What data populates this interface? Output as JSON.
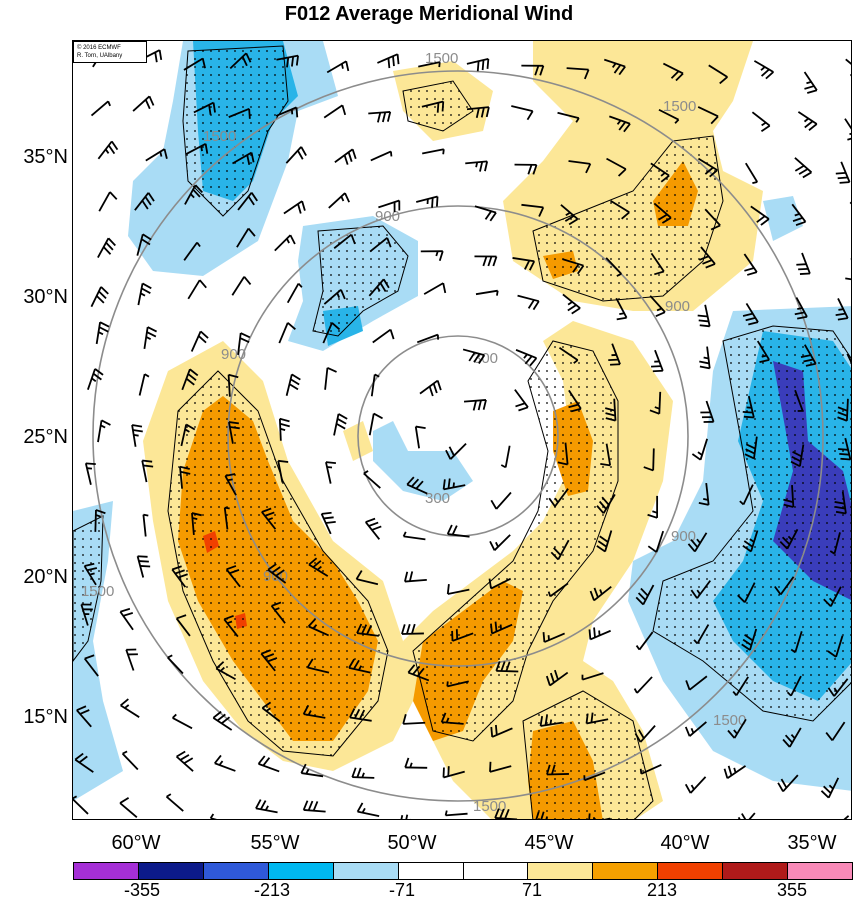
{
  "title": "F012 Average Meridional Wind",
  "credit": {
    "line1": "© 2016 ECMWF",
    "line2": "R. Torn, UAlbany"
  },
  "lat_labels": [
    "35°N",
    "30°N",
    "25°N",
    "20°N",
    "15°N"
  ],
  "lon_labels": [
    "60°W",
    "55°W",
    "50°W",
    "45°W",
    "40°W",
    "35°W"
  ],
  "contour_labels": [
    "300",
    "300",
    "900",
    "900",
    "900",
    "900",
    "900",
    "1500",
    "1500",
    "1500",
    "1500",
    "1500",
    "1500"
  ],
  "colorbar": {
    "colors": [
      "#a52fd6",
      "#0c1a8a",
      "#2f59d9",
      "#00b8f0",
      "#a9dcf5",
      "#ffffff",
      "#ffffff",
      "#fce797",
      "#f5a000",
      "#f04000",
      "#b01a1a",
      "#f98ab8"
    ],
    "labels": [
      "-355",
      "-213",
      "-71",
      "71",
      "213",
      "355"
    ]
  },
  "fill_colors": {
    "light_blue": "#a9dcf5",
    "blue": "#29b4e8",
    "dark_blue": "#2f59d9",
    "navy": "#3a3dbb",
    "light_yellow": "#fce797",
    "orange": "#f59a00",
    "red": "#f04000"
  }
}
